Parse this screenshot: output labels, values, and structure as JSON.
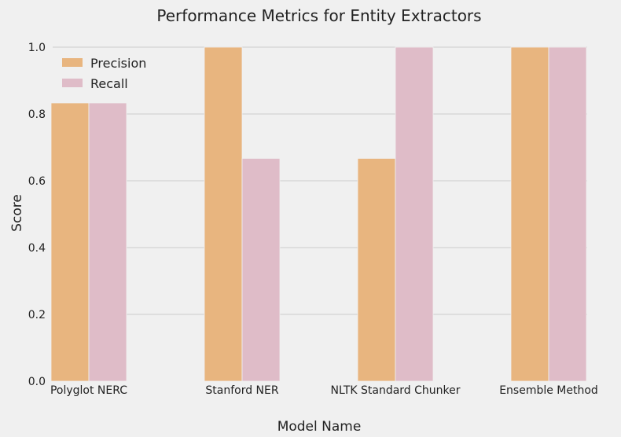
{
  "chart_data": {
    "type": "bar",
    "title": "Performance Metrics for Entity Extractors",
    "xlabel": "Model Name",
    "ylabel": "Score",
    "categories": [
      "Polyglot NERC",
      "Stanford NER",
      "NLTK Standard Chunker",
      "Ensemble Method"
    ],
    "series": [
      {
        "name": "Precision",
        "values": [
          0.833,
          1.0,
          0.667,
          1.0
        ],
        "color": "#e8b57f"
      },
      {
        "name": "Recall",
        "values": [
          0.833,
          0.667,
          1.0,
          1.0
        ],
        "color": "#dfbcc8"
      }
    ],
    "ylim": [
      0,
      1.0
    ],
    "yticks": [
      "0.0",
      "0.2",
      "0.4",
      "0.6",
      "0.8",
      "1.0"
    ],
    "grid": true,
    "legend_position": "top-left"
  }
}
